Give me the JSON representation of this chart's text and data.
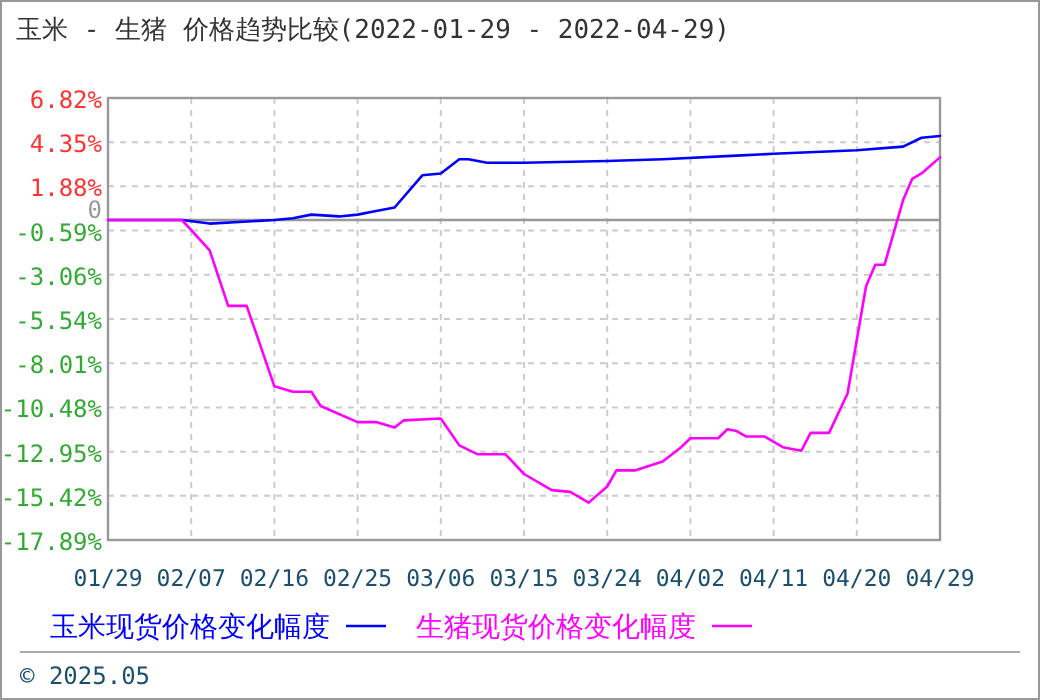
{
  "chart_data": {
    "type": "line",
    "title": "玉米 - 生猪 价格趋势比较(2022-01-29 - 2022-04-29)",
    "xlim": [
      "2022-01-29",
      "2022-04-29"
    ],
    "xticks": [
      {
        "value": "2022-01-29",
        "label": "01/29"
      },
      {
        "value": "2022-02-07",
        "label": "02/07"
      },
      {
        "value": "2022-02-16",
        "label": "02/16"
      },
      {
        "value": "2022-02-25",
        "label": "02/25"
      },
      {
        "value": "2022-03-06",
        "label": "03/06"
      },
      {
        "value": "2022-03-15",
        "label": "03/15"
      },
      {
        "value": "2022-03-24",
        "label": "03/24"
      },
      {
        "value": "2022-04-02",
        "label": "04/02"
      },
      {
        "value": "2022-04-11",
        "label": "04/11"
      },
      {
        "value": "2022-04-20",
        "label": "04/20"
      },
      {
        "value": "2022-04-29",
        "label": "04/29"
      }
    ],
    "ylim": [
      -17.89,
      6.82
    ],
    "yticks": [
      {
        "value": 6.82,
        "label": "6.82%"
      },
      {
        "value": 4.35,
        "label": "4.35%"
      },
      {
        "value": 1.88,
        "label": "1.88%"
      },
      0,
      {
        "value": -0.59,
        "label": "-0.59%"
      },
      {
        "value": -3.06,
        "label": "-3.06%"
      },
      {
        "value": -5.54,
        "label": "-5.54%"
      },
      {
        "value": -8.01,
        "label": "-8.01%"
      },
      {
        "value": -10.48,
        "label": "-10.48%"
      },
      {
        "value": -12.95,
        "label": "-12.95%"
      },
      {
        "value": -15.42,
        "label": "-15.42%"
      },
      {
        "value": -17.89,
        "label": "-17.89%"
      }
    ],
    "grid": true,
    "legend": "bottom",
    "line_style": "solid",
    "marker": "none",
    "ref_lines": [
      {
        "axis": "y",
        "value": 0,
        "color": "#999999"
      }
    ],
    "series": [
      {
        "name": "玉米现货价格变化幅度",
        "color": "#0000ff",
        "x": [
          "2022-01-29",
          "2022-02-06",
          "2022-02-09",
          "2022-02-16",
          "2022-02-18",
          "2022-02-20",
          "2022-02-23",
          "2022-02-25",
          "2022-02-27",
          "2022-03-01",
          "2022-03-04",
          "2022-03-06",
          "2022-03-08",
          "2022-03-09",
          "2022-03-11",
          "2022-03-15",
          "2022-03-24",
          "2022-03-30",
          "2022-04-07",
          "2022-04-11",
          "2022-04-20",
          "2022-04-25",
          "2022-04-27",
          "2022-04-29"
        ],
        "values": [
          0,
          0,
          -0.2,
          0,
          0.1,
          0.3,
          0.2,
          0.3,
          0.5,
          0.7,
          2.5,
          2.6,
          3.4,
          3.4,
          3.2,
          3.2,
          3.3,
          3.4,
          3.6,
          3.7,
          3.9,
          4.1,
          4.6,
          4.7
        ]
      },
      {
        "name": "生猪现货价格变化幅度",
        "color": "#ff00ff",
        "x": [
          "2022-01-29",
          "2022-02-06",
          "2022-02-09",
          "2022-02-11",
          "2022-02-13",
          "2022-02-14",
          "2022-02-16",
          "2022-02-18",
          "2022-02-20",
          "2022-02-21",
          "2022-02-25",
          "2022-02-27",
          "2022-03-01",
          "2022-03-02",
          "2022-03-06",
          "2022-03-08",
          "2022-03-10",
          "2022-03-13",
          "2022-03-15",
          "2022-03-18",
          "2022-03-20",
          "2022-03-22",
          "2022-03-24",
          "2022-03-25",
          "2022-03-27",
          "2022-03-30",
          "2022-04-01",
          "2022-04-02",
          "2022-04-05",
          "2022-04-06",
          "2022-04-07",
          "2022-04-08",
          "2022-04-10",
          "2022-04-12",
          "2022-04-14",
          "2022-04-15",
          "2022-04-17",
          "2022-04-19",
          "2022-04-21",
          "2022-04-22",
          "2022-04-23",
          "2022-04-25",
          "2022-04-26",
          "2022-04-27",
          "2022-04-29"
        ],
        "values": [
          0,
          0,
          -1.7,
          -4.8,
          -4.8,
          -6.3,
          -9.3,
          -9.6,
          -9.6,
          -10.4,
          -11.3,
          -11.3,
          -11.6,
          -11.2,
          -11.1,
          -12.6,
          -13.1,
          -13.1,
          -14.2,
          -15.1,
          -15.2,
          -15.8,
          -14.9,
          -14.0,
          -14.0,
          -13.5,
          -12.7,
          -12.2,
          -12.2,
          -11.7,
          -11.8,
          -12.1,
          -12.1,
          -12.7,
          -12.9,
          -11.9,
          -11.9,
          -9.7,
          -3.7,
          -2.5,
          -2.5,
          1.1,
          2.3,
          2.6,
          3.5
        ]
      }
    ],
    "annotations": [
      "© 2025.05"
    ]
  }
}
